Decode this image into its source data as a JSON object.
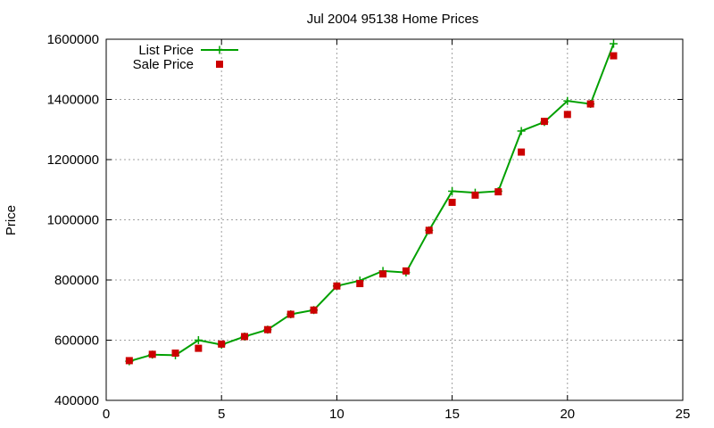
{
  "chart_data": {
    "type": "line",
    "title": "Jul 2004 95138 Home Prices",
    "xlabel": "",
    "ylabel": "Price",
    "xlim": [
      0,
      25
    ],
    "ylim": [
      400000,
      1600000
    ],
    "xticks": [
      0,
      5,
      10,
      15,
      20,
      25
    ],
    "yticks": [
      400000,
      600000,
      800000,
      1000000,
      1200000,
      1400000,
      1600000
    ],
    "grid": true,
    "legend_position": "top-left",
    "series": [
      {
        "name": "List Price",
        "style": "line-plus",
        "color": "#00a000",
        "x": [
          1,
          2,
          3,
          4,
          5,
          6,
          7,
          8,
          9,
          10,
          11,
          12,
          13,
          14,
          15,
          16,
          17,
          18,
          19,
          20,
          21,
          22
        ],
        "values": [
          530000,
          552000,
          550000,
          600000,
          585000,
          612000,
          635000,
          686000,
          700000,
          780000,
          798000,
          830000,
          825000,
          965000,
          1095000,
          1090000,
          1095000,
          1295000,
          1325000,
          1395000,
          1385000,
          1585000
        ]
      },
      {
        "name": "Sale Price",
        "style": "square",
        "color": "#cc0000",
        "x": [
          1,
          2,
          3,
          4,
          5,
          6,
          7,
          8,
          9,
          10,
          11,
          12,
          13,
          14,
          15,
          16,
          17,
          18,
          19,
          20,
          21,
          22
        ],
        "values": [
          532000,
          553000,
          557000,
          573000,
          587000,
          612000,
          635000,
          686000,
          700000,
          780000,
          788000,
          820000,
          830000,
          965000,
          1058000,
          1082000,
          1093000,
          1225000,
          1327000,
          1350000,
          1385000,
          1545000
        ]
      }
    ]
  }
}
